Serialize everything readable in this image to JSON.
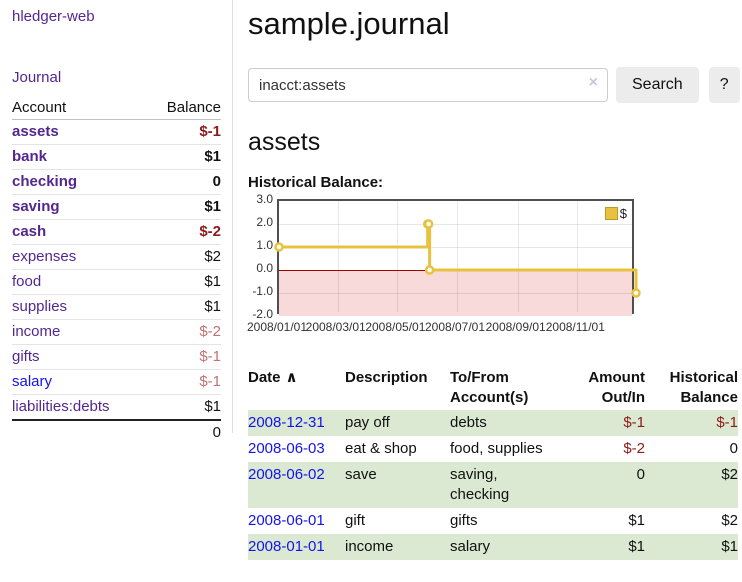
{
  "colors": {
    "link_purple": "#54278f",
    "link_blue": "#1414e8",
    "negative_dark_red": "#8e1a1a",
    "negative_muted_rose": "#c17272",
    "row_stripe_green": "#dbe9d3",
    "chart_line_yellow": "#e8c23f",
    "chart_negative_fill": "#f9dada",
    "chart_zero_line": "#a40000",
    "button_bg": "#ececec"
  },
  "sidebar": {
    "brand": "hledger-web",
    "journal_label": "Journal",
    "accounts_table": {
      "headers": [
        "Account",
        "Balance"
      ],
      "rows": [
        {
          "label": "assets",
          "indent": 1,
          "bold": true,
          "link_color": "purple",
          "balance": "$-1",
          "balance_color": "dark-red"
        },
        {
          "label": "bank",
          "indent": 2,
          "bold": true,
          "link_color": "purple",
          "balance": "$1",
          "balance_color": "black"
        },
        {
          "label": "checking",
          "indent": 3,
          "bold": true,
          "link_color": "purple",
          "balance": "0",
          "balance_color": "black"
        },
        {
          "label": "saving",
          "indent": 3,
          "bold": true,
          "link_color": "purple",
          "balance": "$1",
          "balance_color": "black"
        },
        {
          "label": "cash",
          "indent": 2,
          "bold": true,
          "link_color": "purple",
          "balance": "$-2",
          "balance_color": "dark-red"
        },
        {
          "label": "expenses",
          "indent": 1,
          "bold": false,
          "link_color": "purple",
          "balance": "$2",
          "balance_color": "black"
        },
        {
          "label": "food",
          "indent": 2,
          "bold": false,
          "link_color": "purple",
          "balance": "$1",
          "balance_color": "black"
        },
        {
          "label": "supplies",
          "indent": 2,
          "bold": false,
          "link_color": "purple",
          "balance": "$1",
          "balance_color": "black"
        },
        {
          "label": "income",
          "indent": 1,
          "bold": false,
          "link_color": "purple",
          "balance": "$-2",
          "balance_color": "rose"
        },
        {
          "label": "gifts",
          "indent": 2,
          "bold": false,
          "link_color": "purple",
          "balance": "$-1",
          "balance_color": "rose"
        },
        {
          "label": "salary",
          "indent": 2,
          "bold": false,
          "link_color": "blue",
          "balance": "$-1",
          "balance_color": "rose"
        },
        {
          "label": "liabilities:debts",
          "indent": 1,
          "bold": false,
          "link_color": "purple",
          "balance": "$1",
          "balance_color": "black"
        }
      ],
      "total": "0"
    }
  },
  "main": {
    "title": "sample.journal",
    "search": {
      "value": "inacct:assets",
      "clear_icon": "×",
      "button_label": "Search",
      "help_label": "?"
    },
    "account_heading": "assets"
  },
  "chart_data": {
    "type": "line",
    "title": "Historical Balance:",
    "step": true,
    "series": [
      {
        "name": "$",
        "color": "#e8c23f",
        "points": [
          {
            "date": "2008-01-01",
            "value": 1.0
          },
          {
            "date": "2008-06-01",
            "value": 2.0
          },
          {
            "date": "2008-06-02",
            "value": 2.0
          },
          {
            "date": "2008-06-03",
            "value": 0.0
          },
          {
            "date": "2008-12-31",
            "value": -1.0
          }
        ]
      }
    ],
    "xrange": [
      "2008-01-01",
      "2008-12-31"
    ],
    "ylim": [
      -2.0,
      3.0
    ],
    "yticks": [
      "3.0",
      "2.0",
      "1.0",
      "0.0",
      "-1.0",
      "-2.0"
    ],
    "xticks": [
      "2008/01/01",
      "2008/03/01",
      "2008/05/01",
      "2008/07/01",
      "2008/09/01",
      "2008/11/01"
    ],
    "grid": true,
    "legend": {
      "label": "$",
      "position": "top-right"
    },
    "negative_region_shaded": true
  },
  "register": {
    "headers": {
      "date": "Date",
      "sort_icon": "∧",
      "description": "Description",
      "accounts": "To/From Account(s)",
      "amount": "Amount Out/In",
      "balance": "Historical Balance"
    },
    "rows": [
      {
        "date": "2008-12-31",
        "description": "pay off",
        "accounts": "debts",
        "amount": "$-1",
        "amount_neg": true,
        "balance": "$-1",
        "balance_neg": true,
        "striped": true
      },
      {
        "date": "2008-06-03",
        "description": "eat & shop",
        "accounts": "food, supplies",
        "amount": "$-2",
        "amount_neg": true,
        "balance": "0",
        "balance_neg": false,
        "striped": false
      },
      {
        "date": "2008-06-02",
        "description": "save",
        "accounts": "saving, checking",
        "amount": "0",
        "amount_neg": false,
        "balance": "$2",
        "balance_neg": false,
        "striped": true
      },
      {
        "date": "2008-06-01",
        "description": "gift",
        "accounts": "gifts",
        "amount": "$1",
        "amount_neg": false,
        "balance": "$2",
        "balance_neg": false,
        "striped": false
      },
      {
        "date": "2008-01-01",
        "description": "income",
        "accounts": "salary",
        "amount": "$1",
        "amount_neg": false,
        "balance": "$1",
        "balance_neg": false,
        "striped": true
      }
    ]
  }
}
